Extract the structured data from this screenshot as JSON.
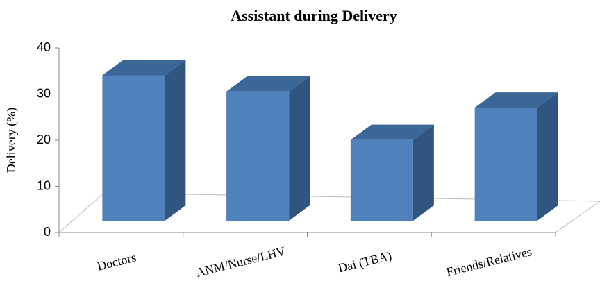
{
  "chart_data": {
    "type": "bar3d",
    "title": "Assistant during Delivery",
    "ylabel": "Delivery (%)",
    "categories": [
      "Doctors",
      "ANM/Nurse/LHV",
      "Dai (TBA)",
      "Friends/Relatives"
    ],
    "values": [
      31.5,
      28,
      17.5,
      24.5
    ],
    "color": "#4f81bd",
    "ylim": [
      0,
      40
    ],
    "yticks": [
      0,
      10,
      20,
      30,
      40
    ]
  }
}
